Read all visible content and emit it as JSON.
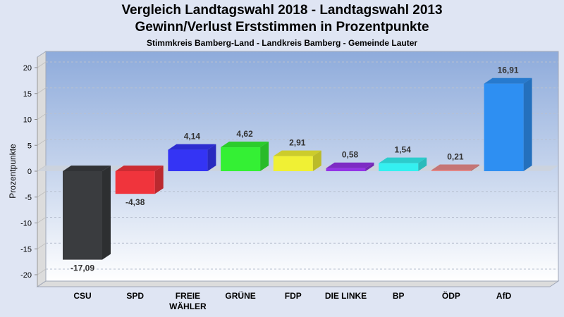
{
  "chart_data": {
    "type": "bar",
    "title": "Vergleich Landtagswahl 2018 - Landtagswahl 2013",
    "title_line2": "Gewinn/Verlust Erststimmen in Prozentpunkte",
    "subtitle": "Stimmkreis Bamberg-Land - Landkreis Bamberg - Gemeinde Lauter",
    "xlabel": "",
    "ylabel": "Prozentpunkte",
    "ylim": [
      -20,
      20
    ],
    "yticks": [
      20,
      15,
      10,
      5,
      0,
      -5,
      -10,
      -15,
      -20
    ],
    "grid": true,
    "categories": [
      "CSU",
      "SPD",
      "FREIE WÄHLER",
      "GRÜNE",
      "FDP",
      "DIE LINKE",
      "BP",
      "ÖDP",
      "AfD"
    ],
    "values": [
      -17.09,
      -4.38,
      4.14,
      4.62,
      2.91,
      0.58,
      1.54,
      0.21,
      16.91
    ],
    "value_labels": [
      "-17,09",
      "-4,38",
      "4,14",
      "4,62",
      "2,91",
      "0,58",
      "1,54",
      "0,21",
      "16,91"
    ],
    "colors": [
      "#3a3c3f",
      "#f0343c",
      "#3434f5",
      "#34f034",
      "#f0f034",
      "#9334e6",
      "#34f0f0",
      "#e88a8a",
      "#2e8ff2"
    ]
  }
}
